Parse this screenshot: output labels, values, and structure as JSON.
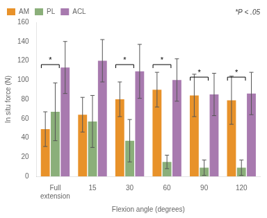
{
  "chart_data": {
    "type": "bar",
    "categories": [
      "Full\nextension",
      "15",
      "30",
      "60",
      "90",
      "120"
    ],
    "series": [
      {
        "name": "AM",
        "color": "#E8922A",
        "values": [
          49,
          64,
          80,
          90,
          84,
          79
        ],
        "errors": [
          18,
          18,
          18,
          18,
          22,
          25
        ]
      },
      {
        "name": "PL",
        "color": "#8BAF7A",
        "values": [
          67,
          57,
          37,
          15,
          9,
          9
        ],
        "errors": [
          30,
          27,
          22,
          7,
          8,
          8
        ]
      },
      {
        "name": "ACL",
        "color": "#A87AAF",
        "values": [
          113,
          120,
          109,
          100,
          85,
          86
        ],
        "errors": [
          27,
          22,
          28,
          22,
          22,
          22
        ]
      }
    ],
    "ylim": [
      0,
      160
    ],
    "yticks": [
      0,
      20,
      40,
      60,
      80,
      100,
      120,
      140,
      160
    ],
    "ylabel": "In situ force (N)",
    "xlabel": "Flexion angle (degrees)",
    "annotation": "*P < .05",
    "sig_brackets": [
      {
        "category": "Full\nextension",
        "y": 116,
        "label": "*"
      },
      {
        "category": "30",
        "y": 116,
        "label": "*"
      },
      {
        "category": "60",
        "y": 116,
        "label": "*"
      },
      {
        "category": "90",
        "y": 103,
        "label": "*"
      },
      {
        "category": "120",
        "y": 103,
        "label": "*"
      }
    ],
    "grid": false,
    "legend": "top left"
  }
}
